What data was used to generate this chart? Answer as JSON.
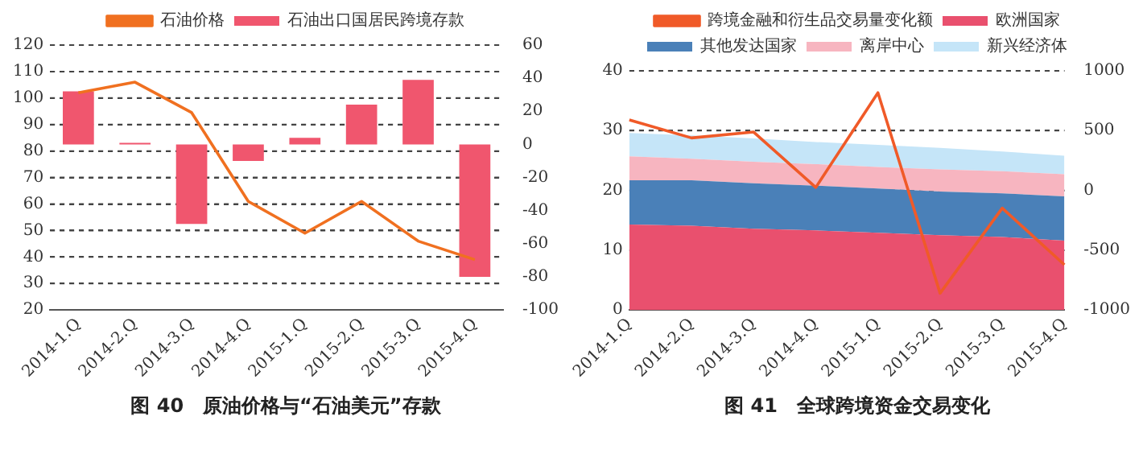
{
  "chart_data": [
    {
      "type": "bar",
      "title": "图 40　原油价格与“石油美元”存款",
      "categories": [
        "2014-1.Q",
        "2014-2.Q",
        "2014-3.Q",
        "2014-4.Q",
        "2015-1.Q",
        "2015-2.Q",
        "2015-3.Q",
        "2015-4.Q"
      ],
      "series": [
        {
          "name": "石油出口国居民跨境存款",
          "color": "#f0566e",
          "axis": "y2",
          "values": [
            32,
            1,
            -48,
            -10,
            4,
            24,
            39,
            -80
          ]
        },
        {
          "name": "石油价格",
          "color": "#f07020",
          "type": "line",
          "values": [
            102,
            106,
            94.5,
            61,
            49,
            61,
            46,
            39
          ]
        }
      ],
      "ylim": [
        20,
        120
      ],
      "yticks": [
        20,
        30,
        40,
        50,
        60,
        70,
        80,
        90,
        100,
        110,
        120
      ],
      "y2lim": [
        -100,
        60
      ],
      "y2ticks": [
        -100,
        -80,
        -60,
        -40,
        -20,
        0,
        20,
        40,
        60
      ],
      "grid": "y",
      "legend": "top",
      "marker": "none"
    },
    {
      "type": "area",
      "title": "图 41　全球跨境资金交易变化",
      "stacked": true,
      "categories": [
        "2014-1.Q",
        "2014-2.Q",
        "2014-3.Q",
        "2014-4.Q",
        "2015-1.Q",
        "2015-2.Q",
        "2015-3.Q",
        "2015-4.Q"
      ],
      "series": [
        {
          "name": "欧洲国家",
          "color": "#e9506e",
          "values": [
            14.3,
            14.1,
            13.6,
            13.3,
            12.9,
            12.5,
            12.2,
            11.6
          ]
        },
        {
          "name": "其他发达国家",
          "color": "#4a80b8",
          "values": [
            7.4,
            7.6,
            7.6,
            7.5,
            7.4,
            7.3,
            7.3,
            7.4
          ]
        },
        {
          "name": "离岸中心",
          "color": "#f7b5c0",
          "values": [
            4.0,
            3.6,
            3.6,
            3.6,
            3.6,
            3.7,
            3.7,
            3.7
          ]
        },
        {
          "name": "新兴经济体",
          "color": "#c5e5f8",
          "values": [
            3.9,
            3.9,
            3.9,
            3.7,
            3.7,
            3.6,
            3.3,
            3.1
          ]
        },
        {
          "name": "跨境金融和衍生品交易量变化额",
          "color": "#f05a28",
          "type": "line",
          "axis": "y2",
          "values": [
            590,
            439,
            488,
            25,
            817,
            -860,
            -148,
            -622
          ]
        }
      ],
      "ylim": [
        0,
        40
      ],
      "yticks": [
        0,
        10,
        20,
        30,
        40
      ],
      "y2lim": [
        -1000,
        1000
      ],
      "y2ticks": [
        -1000,
        -500,
        0,
        500,
        1000
      ],
      "grid": "y",
      "legend": "top",
      "marker": "none"
    }
  ]
}
